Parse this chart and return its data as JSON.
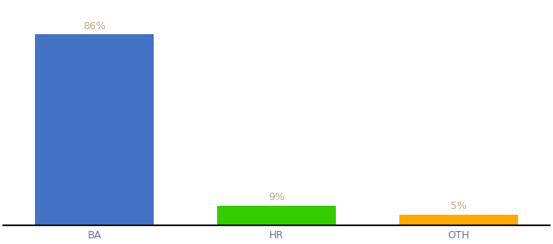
{
  "categories": [
    "BA",
    "HR",
    "OTH"
  ],
  "values": [
    86,
    9,
    5
  ],
  "labels": [
    "86%",
    "9%",
    "5%"
  ],
  "bar_colors": [
    "#4472c4",
    "#33cc00",
    "#ffaa00"
  ],
  "background_color": "#ffffff",
  "label_color": "#c8a882",
  "label_fontsize": 9,
  "tick_fontsize": 9,
  "tick_color": "#7070a0",
  "bar_width": 0.65,
  "ylim": [
    0,
    100
  ],
  "xlim": [
    -0.5,
    2.5
  ]
}
